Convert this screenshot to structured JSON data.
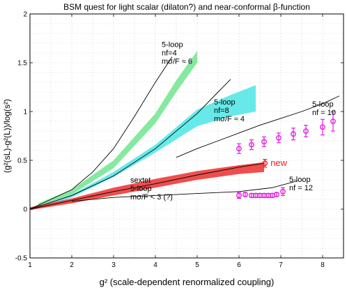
{
  "chart_data": {
    "type": "line",
    "title": "BSM quest for light scalar (dilaton?) and near-conformal  β-function",
    "xlabel": "g²  (scale-dependent renormalized coupling)",
    "ylabel": "(g²(sL)-g²(L))/log(s²)",
    "xlim": [
      1,
      8.5
    ],
    "ylim": [
      -0.5,
      2
    ],
    "xticks": [
      "1",
      "2",
      "3",
      "4",
      "5",
      "6",
      "7",
      "8"
    ],
    "yticks": [
      "-0.5",
      "0",
      "0.5",
      "1",
      "1.5",
      "2"
    ],
    "grid": "dotted",
    "curves": [
      {
        "id": "nf4",
        "label_lines": [
          "5-loop",
          "nf=4",
          "mσ/F ≈ 6"
        ],
        "x": [
          1.0,
          1.5,
          2.0,
          2.5,
          3.0,
          3.5,
          4.0,
          4.4
        ],
        "y": [
          0.0,
          0.1,
          0.2,
          0.38,
          0.62,
          0.95,
          1.3,
          1.56
        ]
      },
      {
        "id": "nf8",
        "label_lines": [
          "5-loop",
          "nf=8",
          "mσ/F ≈ 4"
        ],
        "x": [
          1.0,
          2.0,
          3.0,
          4.0,
          5.0,
          5.5,
          5.8
        ],
        "y": [
          0.0,
          0.14,
          0.34,
          0.62,
          0.98,
          1.2,
          1.33
        ]
      },
      {
        "id": "nf10",
        "label_lines": [
          "5-loop",
          "nf = 10"
        ],
        "x": [
          4.5,
          5.0,
          5.5,
          6.0,
          6.5,
          7.0,
          7.5,
          8.0,
          8.4
        ],
        "y": [
          0.53,
          0.62,
          0.7,
          0.78,
          0.86,
          0.93,
          1.0,
          1.08,
          1.16
        ]
      },
      {
        "id": "nf12",
        "label_lines": [
          "5-loop",
          "nf = 12"
        ],
        "x": [
          2.0,
          3.0,
          4.0,
          5.0,
          6.0,
          6.8,
          7.4
        ],
        "y": [
          0.08,
          0.12,
          0.14,
          0.16,
          0.18,
          0.22,
          0.29
        ]
      },
      {
        "id": "sextet",
        "label_lines": [
          "sextet",
          "5-loop",
          "mσ/F < 3 (?)"
        ],
        "x": [
          1.0,
          2.0,
          3.0,
          4.0,
          5.0,
          6.0,
          6.6
        ],
        "y": [
          0.0,
          0.09,
          0.18,
          0.26,
          0.35,
          0.43,
          0.47
        ]
      }
    ],
    "bands": [
      {
        "id": "green-band",
        "color": "#7ee89a",
        "x": [
          1.2,
          2.0,
          3.0,
          4.0,
          4.5,
          5.0
        ],
        "lower": [
          0.03,
          0.15,
          0.42,
          0.88,
          1.2,
          1.5
        ],
        "upper": [
          0.06,
          0.2,
          0.5,
          0.98,
          1.32,
          1.62
        ]
      },
      {
        "id": "cyan-band",
        "color": "#5fe8e8",
        "x": [
          1.2,
          2.0,
          3.0,
          4.0,
          5.0,
          5.8,
          6.4
        ],
        "lower": [
          0.01,
          0.12,
          0.33,
          0.58,
          0.85,
          0.95,
          1.0
        ],
        "upper": [
          0.03,
          0.15,
          0.38,
          0.66,
          1.02,
          1.17,
          1.27
        ]
      },
      {
        "id": "red-band",
        "color": "#ee4444",
        "x": [
          1.0,
          2.0,
          3.0,
          4.0,
          5.0,
          6.0,
          6.6
        ],
        "lower": [
          -0.01,
          0.06,
          0.14,
          0.22,
          0.3,
          0.36,
          0.38
        ],
        "upper": [
          0.02,
          0.11,
          0.22,
          0.31,
          0.39,
          0.45,
          0.48
        ]
      }
    ],
    "data_points": [
      {
        "id": "magenta-upper",
        "color": "#e020e0",
        "points": [
          {
            "x": 6.0,
            "y": 0.62,
            "err": 0.05
          },
          {
            "x": 6.3,
            "y": 0.66,
            "err": 0.05
          },
          {
            "x": 6.6,
            "y": 0.69,
            "err": 0.05
          },
          {
            "x": 6.95,
            "y": 0.73,
            "err": 0.05
          },
          {
            "x": 7.3,
            "y": 0.77,
            "err": 0.06
          },
          {
            "x": 7.6,
            "y": 0.8,
            "err": 0.06
          },
          {
            "x": 8.0,
            "y": 0.84,
            "err": 0.08
          },
          {
            "x": 8.25,
            "y": 0.9,
            "err": 0.1
          }
        ]
      },
      {
        "id": "magenta-lower",
        "color": "#e020e0",
        "points": [
          {
            "x": 6.0,
            "y": 0.14,
            "err": 0.03
          },
          {
            "x": 6.15,
            "y": 0.15,
            "err": 0.02
          },
          {
            "x": 6.3,
            "y": 0.14,
            "err": 0.02
          },
          {
            "x": 6.4,
            "y": 0.14,
            "err": 0.02
          },
          {
            "x": 6.5,
            "y": 0.14,
            "err": 0.02
          },
          {
            "x": 6.6,
            "y": 0.14,
            "err": 0.02
          },
          {
            "x": 6.7,
            "y": 0.14,
            "err": 0.02
          },
          {
            "x": 6.8,
            "y": 0.14,
            "err": 0.02
          },
          {
            "x": 6.9,
            "y": 0.15,
            "err": 0.02
          },
          {
            "x": 7.05,
            "y": 0.18,
            "err": 0.04
          }
        ]
      },
      {
        "id": "red-new",
        "color": "#ee2222",
        "points": [
          {
            "x": 6.62,
            "y": 0.47,
            "err": 0.04
          }
        ]
      }
    ],
    "new_label": "new"
  }
}
